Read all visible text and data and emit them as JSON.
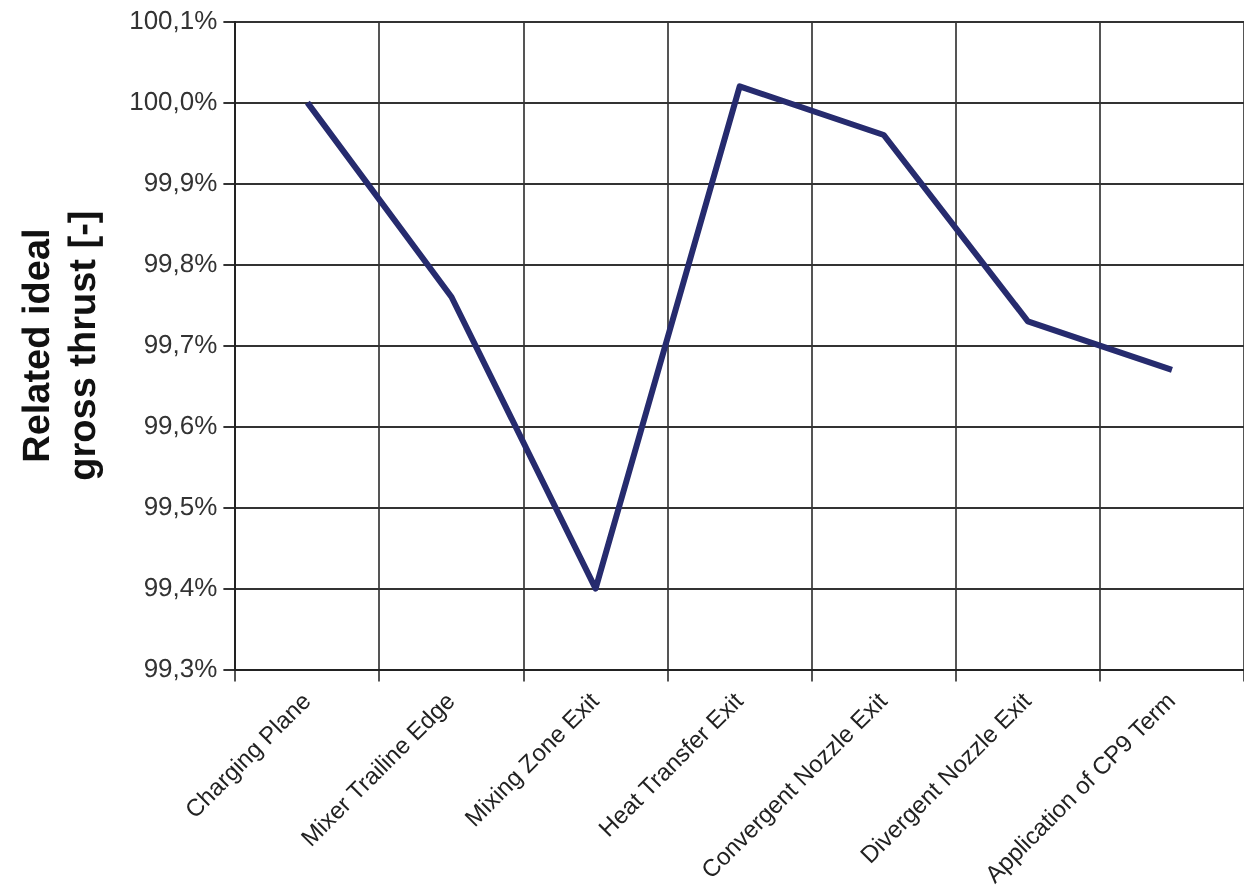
{
  "chart_data": {
    "type": "line",
    "ylabel": "Related ideal\ngross thrust [-]",
    "categories": [
      "Charging Plane",
      "Mixer Trailine Edge",
      "Mixing Zone Exit",
      "Heat Transfer Exit",
      "Convergent Nozzle Exit",
      "Divergent Nozzle Exit",
      "Application of CP9 Term"
    ],
    "series": [
      {
        "color": "#262b6e",
        "values": [
          100.0,
          99.76,
          99.4,
          100.02,
          99.96,
          99.73,
          99.67
        ]
      }
    ],
    "ylim": [
      99.3,
      100.1
    ],
    "yticks": [
      {
        "value": 99.3,
        "label": "99,3%"
      },
      {
        "value": 99.4,
        "label": "99,4%"
      },
      {
        "value": 99.5,
        "label": "99,5%"
      },
      {
        "value": 99.6,
        "label": "99,6%"
      },
      {
        "value": 99.7,
        "label": "99,7%"
      },
      {
        "value": 99.8,
        "label": "99,8%"
      },
      {
        "value": 99.9,
        "label": "99,9%"
      },
      {
        "value": 100.0,
        "label": "100,0%"
      },
      {
        "value": 100.1,
        "label": "100,1%"
      }
    ],
    "grid": true,
    "legend": false,
    "marker": "none",
    "line_style": "solid"
  }
}
